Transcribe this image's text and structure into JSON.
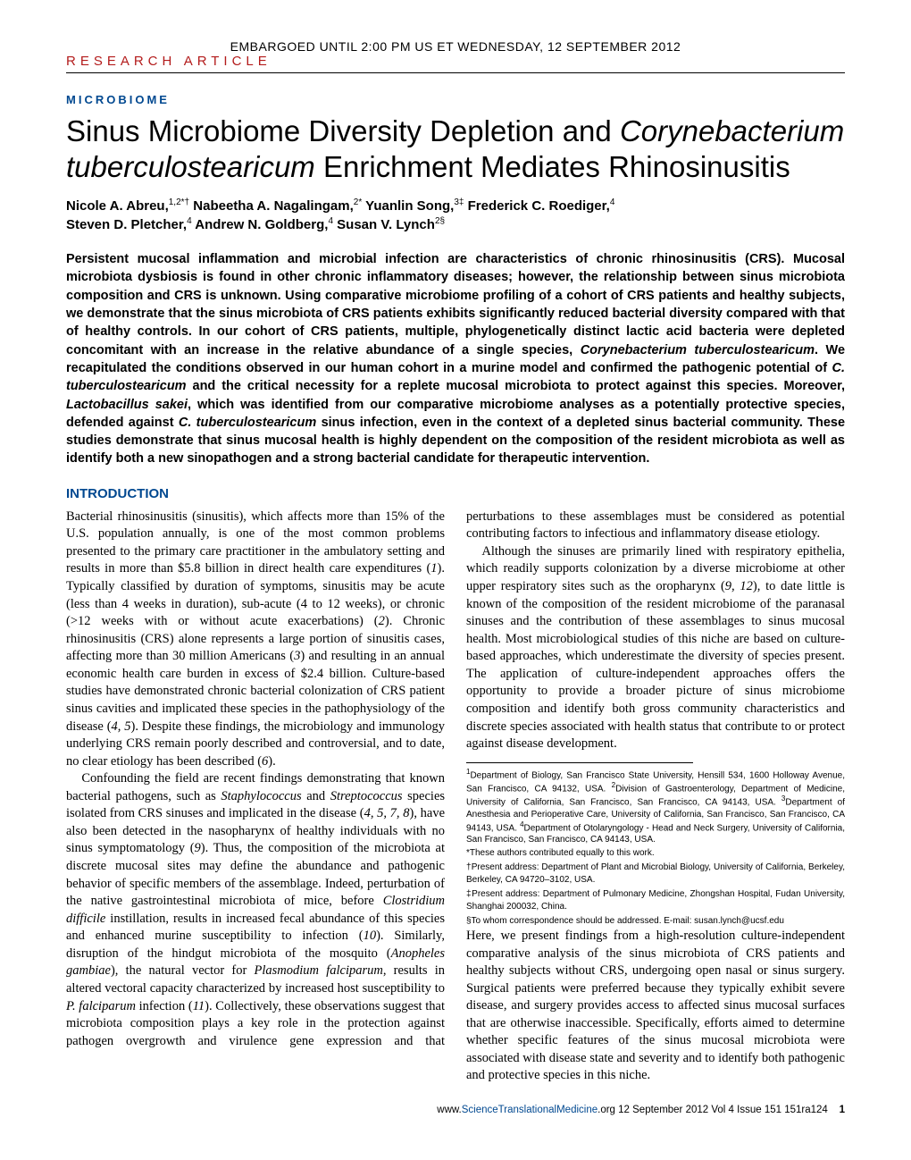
{
  "header": {
    "embargo": "EMBARGOED UNTIL 2:00 PM US ET WEDNESDAY, 12 SEPTEMBER 2012",
    "article_type": "RESEARCH ARTICLE"
  },
  "section_label": "MICROBIOME",
  "title_1": "Sinus Microbiome Diversity Depletion and ",
  "title_2_italic": "Corynebacterium tuberculostearicum",
  "title_3": " Enrichment Mediates Rhinosinusitis",
  "authors_line1": "Nicole A. Abreu,",
  "authors_sup1": "1,2*†",
  "authors_line2": " Nabeetha A. Nagalingam,",
  "authors_sup2": "2*",
  "authors_line3": " Yuanlin Song,",
  "authors_sup3": "3‡",
  "authors_line4": " Frederick C. Roediger,",
  "authors_sup4": "4",
  "authors_line5": "Steven D. Pletcher,",
  "authors_sup5": "4",
  "authors_line6": " Andrew N. Goldberg,",
  "authors_sup6": "4",
  "authors_line7": " Susan V. Lynch",
  "authors_sup7": "2§",
  "abstract_p1": "Persistent mucosal inflammation and microbial infection are characteristics of chronic rhinosinusitis (CRS). Mucosal microbiota dysbiosis is found in other chronic inflammatory diseases; however, the relationship between sinus microbiota composition and CRS is unknown. Using comparative microbiome profiling of a cohort of CRS patients and healthy subjects, we demonstrate that the sinus microbiota of CRS patients exhibits significantly reduced bacterial diversity compared with that of healthy controls. In our cohort of CRS patients, multiple, phylogenetically distinct lactic acid bacteria were depleted concomitant with an increase in the relative abundance of a single species, ",
  "abstract_i1": "Corynebacterium tuberculostearicum",
  "abstract_p2": ". We recapitulated the conditions observed in our human cohort in a murine model and confirmed the pathogenic potential of ",
  "abstract_i2": "C. tuberculostearicum",
  "abstract_p3": " and the critical necessity for a replete mucosal microbiota to protect against this species. Moreover, ",
  "abstract_i3": "Lactobacillus sakei",
  "abstract_p4": ", which was identified from our comparative microbiome analyses as a potentially protective species, defended against ",
  "abstract_i4": "C. tuberculostearicum",
  "abstract_p5": " sinus infection, even in the context of a depleted sinus bacterial community. These studies demonstrate that sinus mucosal health is highly dependent on the composition of the resident microbiota as well as identify both a new sinopathogen and a strong bacterial candidate for therapeutic intervention.",
  "intro_heading": "INTRODUCTION",
  "col1_p1a": "Bacterial rhinosinusitis (sinusitis), which affects more than 15% of the U.S. population annually, is one of the most common problems presented to the primary care practitioner in the ambulatory setting and results in more than $5.8 billion in direct health care expenditures (",
  "col1_p1_i1": "1",
  "col1_p1b": "). Typically classified by duration of symptoms, sinusitis may be acute (less than 4 weeks in duration), sub-acute (4 to 12 weeks), or chronic (>12 weeks with or without acute exacerbations) (",
  "col1_p1_i2": "2",
  "col1_p1c": "). Chronic rhinosinusitis (CRS) alone represents a large portion of sinusitis cases, affecting more than 30 million Americans (",
  "col1_p1_i3": "3",
  "col1_p1d": ") and resulting in an annual economic health care burden in excess of $2.4 billion. Culture-based studies have demonstrated chronic bacterial colonization of CRS patient sinus cavities and implicated these species in the pathophysiology of the disease (",
  "col1_p1_i4": "4, 5",
  "col1_p1e": "). Despite these findings, the microbiology and immunology underlying CRS remain poorly described and controversial, and to date, no clear etiology has been described (",
  "col1_p1_i5": "6",
  "col1_p1f": ").",
  "col1_p2a": "Confounding the field are recent findings demonstrating that known bacterial pathogens, such as ",
  "col1_p2_i1": "Staphylococcus",
  "col1_p2b": " and ",
  "col1_p2_i2": "Streptococcus",
  "col1_p2c": " species isolated from CRS sinuses and implicated in the disease (",
  "col1_p2_i3": "4, 5, 7, 8",
  "col1_p2d": "), have also been detected in the nasopharynx of healthy individuals with no sinus symptomatology (",
  "col1_p2_i4": "9",
  "col1_p2e": "). Thus, the composition of the microbiota at discrete mucosal sites may define the abundance and pathogenic be",
  "col2_p1a": "havior of specific members of the assemblage. Indeed, perturbation of the native gastrointestinal microbiota of mice, before ",
  "col2_p1_i1": "Clostridium difficile",
  "col2_p1b": " instillation, results in increased fecal abundance of this species and enhanced murine susceptibility to infection (",
  "col2_p1_i2": "10",
  "col2_p1c": "). Similarly, disruption of the hindgut microbiota of the mosquito (",
  "col2_p1_i3": "Anopheles gambiae",
  "col2_p1d": "), the natural vector for ",
  "col2_p1_i4": "Plasmodium falciparum",
  "col2_p1e": ", results in altered vectoral capacity characterized by increased host susceptibility to ",
  "col2_p1_i5": "P. falciparum",
  "col2_p1f": " infection (",
  "col2_p1_i6": "11",
  "col2_p1g": "). Collectively, these observations suggest that microbiota composition plays a key role in the protection against pathogen overgrowth and virulence gene expression and that perturbations to these assemblages must be considered as potential contributing factors to infectious and inflammatory disease etiology.",
  "col2_p2a": "Although the sinuses are primarily lined with respiratory epithelia, which readily supports colonization by a diverse microbiome at other upper respiratory sites such as the oropharynx (",
  "col2_p2_i1": "9, 12",
  "col2_p2b": "), to date little is known of the composition of the resident microbiome of the paranasal sinuses and the contribution of these assemblages to sinus mucosal health. Most microbiological studies of this niche are based on culture-based approaches, which underestimate the diversity of species present. The application of culture-independent approaches offers the opportunity to provide a broader picture of sinus microbiome composition and identify both gross community characteristics and discrete species associated with health status that contribute to or protect against disease development.",
  "col2_p3": "Here, we present findings from a high-resolution culture-independent comparative analysis of the sinus microbiota of CRS patients and healthy subjects without CRS, undergoing open nasal or sinus surgery. Surgical patients were preferred because they typically exhibit severe disease, and surgery provides access to affected sinus mucosal surfaces that are otherwise inaccessible. Specifically, efforts aimed to determine whether specific features of the sinus mucosal microbiota were associated with disease state and severity and to identify both pathogenic and protective species in this niche.",
  "affiliations": {
    "a1_sup": "1",
    "a1": "Department of Biology, San Francisco State University, Hensill 534, 1600 Holloway Avenue, San Francisco, CA 94132, USA. ",
    "a2_sup": "2",
    "a2": "Division of Gastroenterology, Department of Medicine, University of California, San Francisco, San Francisco, CA 94143, USA. ",
    "a3_sup": "3",
    "a3": "Department of Anesthesia and Perioperative Care, University of California, San Francisco, San Francisco, CA 94143, USA. ",
    "a4_sup": "4",
    "a4": "Department of Otolaryngology - Head and Neck Surgery, University of California, San Francisco, San Francisco, CA 94143, USA.",
    "note_equal": "*These authors contributed equally to this work.",
    "note_dagger": "†Present address: Department of Plant and Microbial Biology, University of California, Berkeley, Berkeley, CA 94720–3102, USA.",
    "note_ddagger": "‡Present address: Department of Pulmonary Medicine, Zhongshan Hospital, Fudan University, Shanghai 200032, China.",
    "note_section": "§To whom correspondence should be addressed. E-mail: susan.lynch@ucsf.edu"
  },
  "footer": {
    "url_pre": "www.",
    "url_mid": "ScienceTranslationalMedicine",
    "url_post": ".org",
    "rest": "    12 September 2012    Vol 4 Issue 151 151ra124",
    "page": "1"
  },
  "colors": {
    "red": "#b31b1b",
    "blue": "#004890",
    "black": "#000000"
  }
}
